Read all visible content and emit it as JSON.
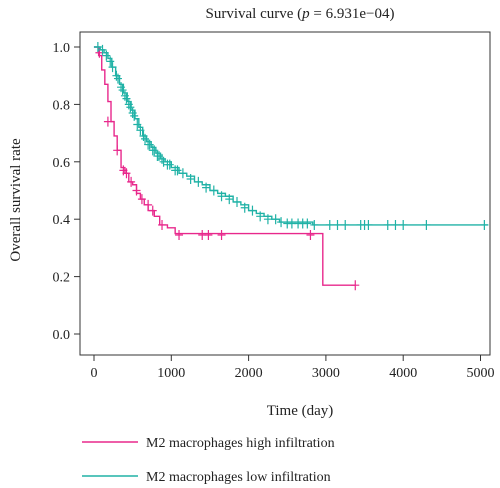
{
  "chart_data": {
    "type": "line",
    "title": "Survival curve",
    "title_p_label": "p",
    "title_p_value": " = 6.931e−04)",
    "title_open": "Survival curve (",
    "xlabel": "Time (day)",
    "ylabel": "Overall survival rate",
    "xlim": [
      0,
      5100
    ],
    "ylim": [
      0,
      1
    ],
    "x_ticks": [
      0,
      1000,
      2000,
      3000,
      4000,
      5000
    ],
    "y_ticks": [
      0.0,
      0.2,
      0.4,
      0.6,
      0.8,
      1.0
    ],
    "y_tick_labels": [
      "0.0",
      "0.2",
      "0.4",
      "0.6",
      "0.8",
      "1.0"
    ],
    "legend_position": "bottom",
    "series": [
      {
        "name": "M2 macrophages high infiltration",
        "color": "#e8288c",
        "steps": [
          [
            0,
            1.0
          ],
          [
            60,
            0.97
          ],
          [
            100,
            0.92
          ],
          [
            140,
            0.87
          ],
          [
            180,
            0.81
          ],
          [
            220,
            0.74
          ],
          [
            260,
            0.69
          ],
          [
            300,
            0.64
          ],
          [
            350,
            0.58
          ],
          [
            400,
            0.56
          ],
          [
            450,
            0.53
          ],
          [
            500,
            0.52
          ],
          [
            550,
            0.49
          ],
          [
            600,
            0.47
          ],
          [
            650,
            0.45
          ],
          [
            700,
            0.43
          ],
          [
            780,
            0.41
          ],
          [
            850,
            0.38
          ],
          [
            950,
            0.37
          ],
          [
            1050,
            0.35
          ],
          [
            2960,
            0.17
          ],
          [
            3380,
            0.17
          ]
        ],
        "censors": [
          [
            70,
            0.98
          ],
          [
            180,
            0.74
          ],
          [
            300,
            0.64
          ],
          [
            380,
            0.57
          ],
          [
            420,
            0.56
          ],
          [
            480,
            0.53
          ],
          [
            550,
            0.5
          ],
          [
            620,
            0.47
          ],
          [
            700,
            0.45
          ],
          [
            760,
            0.43
          ],
          [
            880,
            0.38
          ],
          [
            1100,
            0.345
          ],
          [
            1400,
            0.345
          ],
          [
            1480,
            0.345
          ],
          [
            1650,
            0.345
          ],
          [
            2800,
            0.345
          ],
          [
            3380,
            0.17
          ]
        ]
      },
      {
        "name": "M2 macrophages low infiltration",
        "color": "#20b2a6",
        "steps": [
          [
            0,
            1.0
          ],
          [
            80,
            0.99
          ],
          [
            130,
            0.98
          ],
          [
            180,
            0.96
          ],
          [
            230,
            0.93
          ],
          [
            280,
            0.9
          ],
          [
            330,
            0.87
          ],
          [
            380,
            0.84
          ],
          [
            430,
            0.81
          ],
          [
            480,
            0.78
          ],
          [
            530,
            0.75
          ],
          [
            580,
            0.72
          ],
          [
            630,
            0.69
          ],
          [
            680,
            0.67
          ],
          [
            740,
            0.65
          ],
          [
            800,
            0.63
          ],
          [
            860,
            0.61
          ],
          [
            920,
            0.6
          ],
          [
            1000,
            0.58
          ],
          [
            1100,
            0.56
          ],
          [
            1200,
            0.55
          ],
          [
            1300,
            0.53
          ],
          [
            1400,
            0.52
          ],
          [
            1500,
            0.5
          ],
          [
            1600,
            0.49
          ],
          [
            1700,
            0.48
          ],
          [
            1800,
            0.46
          ],
          [
            1900,
            0.45
          ],
          [
            2000,
            0.43
          ],
          [
            2100,
            0.42
          ],
          [
            2200,
            0.41
          ],
          [
            2300,
            0.4
          ],
          [
            2400,
            0.39
          ],
          [
            2830,
            0.38
          ],
          [
            5100,
            0.38
          ]
        ],
        "censors": [
          [
            50,
            1.0
          ],
          [
            110,
            0.99
          ],
          [
            160,
            0.97
          ],
          [
            210,
            0.95
          ],
          [
            240,
            0.93
          ],
          [
            290,
            0.9
          ],
          [
            310,
            0.89
          ],
          [
            350,
            0.86
          ],
          [
            370,
            0.85
          ],
          [
            400,
            0.83
          ],
          [
            420,
            0.82
          ],
          [
            450,
            0.8
          ],
          [
            470,
            0.79
          ],
          [
            500,
            0.77
          ],
          [
            520,
            0.76
          ],
          [
            560,
            0.73
          ],
          [
            600,
            0.71
          ],
          [
            640,
            0.69
          ],
          [
            660,
            0.68
          ],
          [
            700,
            0.66
          ],
          [
            720,
            0.66
          ],
          [
            760,
            0.64
          ],
          [
            780,
            0.64
          ],
          [
            820,
            0.62
          ],
          [
            840,
            0.62
          ],
          [
            880,
            0.61
          ],
          [
            900,
            0.6
          ],
          [
            950,
            0.59
          ],
          [
            980,
            0.59
          ],
          [
            1050,
            0.57
          ],
          [
            1080,
            0.57
          ],
          [
            1150,
            0.56
          ],
          [
            1250,
            0.54
          ],
          [
            1350,
            0.53
          ],
          [
            1450,
            0.51
          ],
          [
            1550,
            0.5
          ],
          [
            1650,
            0.48
          ],
          [
            1750,
            0.47
          ],
          [
            1850,
            0.46
          ],
          [
            1950,
            0.44
          ],
          [
            2050,
            0.43
          ],
          [
            2150,
            0.41
          ],
          [
            2250,
            0.4
          ],
          [
            2350,
            0.4
          ],
          [
            2420,
            0.39
          ],
          [
            2500,
            0.385
          ],
          [
            2560,
            0.385
          ],
          [
            2640,
            0.385
          ],
          [
            2700,
            0.385
          ],
          [
            2760,
            0.385
          ],
          [
            2850,
            0.38
          ],
          [
            3050,
            0.38
          ],
          [
            3150,
            0.38
          ],
          [
            3250,
            0.38
          ],
          [
            3450,
            0.38
          ],
          [
            3500,
            0.38
          ],
          [
            3550,
            0.38
          ],
          [
            3800,
            0.38
          ],
          [
            3900,
            0.38
          ],
          [
            4000,
            0.38
          ],
          [
            4300,
            0.38
          ],
          [
            5050,
            0.38
          ]
        ]
      }
    ]
  }
}
